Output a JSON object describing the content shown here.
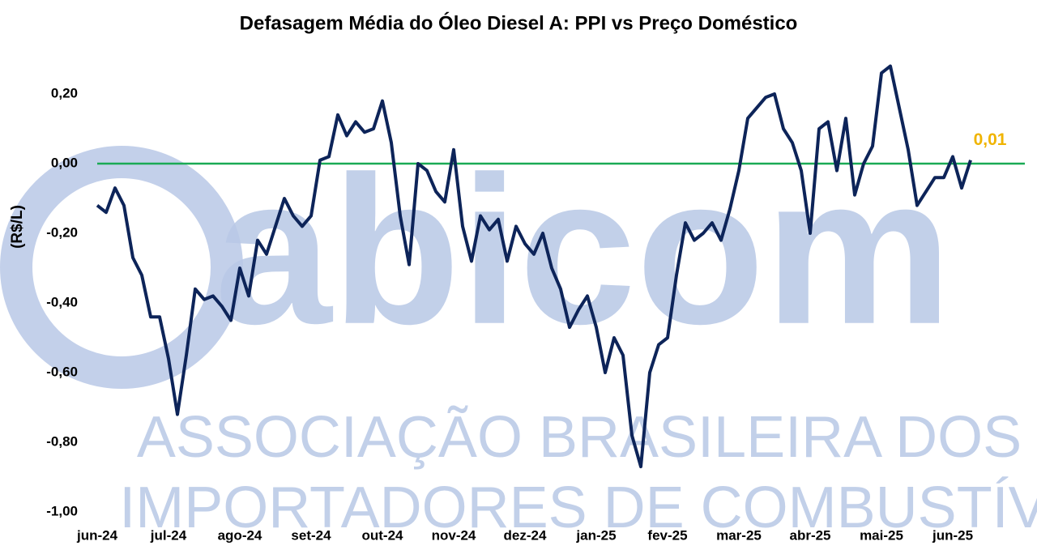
{
  "chart_data": {
    "type": "line",
    "title": "Defasagem Média do Óleo Diesel A: PPI vs Preço Doméstico",
    "y_label": "(R$/L)",
    "watermark": [
      "abicom",
      "ASSOCIAÇÃO BRASILEIRA DOS",
      "IMPORTADORES DE COMBUSTÍVEIS"
    ],
    "categories": [
      "jun-24",
      null,
      null,
      null,
      null,
      null,
      null,
      null,
      "jul-24",
      null,
      null,
      null,
      null,
      null,
      null,
      null,
      "ago-24",
      null,
      null,
      null,
      null,
      null,
      null,
      null,
      "set-24",
      null,
      null,
      null,
      null,
      null,
      null,
      null,
      "out-24",
      null,
      null,
      null,
      null,
      null,
      null,
      null,
      "nov-24",
      null,
      null,
      null,
      null,
      null,
      null,
      null,
      "dez-24",
      null,
      null,
      null,
      null,
      null,
      null,
      null,
      "jan-25",
      null,
      null,
      null,
      null,
      null,
      null,
      null,
      "fev-25",
      null,
      null,
      null,
      null,
      null,
      null,
      null,
      "mar-25",
      null,
      null,
      null,
      null,
      null,
      null,
      null,
      "abr-25",
      null,
      null,
      null,
      null,
      null,
      null,
      null,
      "mai-25",
      null,
      null,
      null,
      null,
      null,
      null,
      null,
      "jun-25",
      null,
      null
    ],
    "series": [
      {
        "name": "Defasagem",
        "color": "#0d2459",
        "values": [
          -0.12,
          -0.14,
          -0.07,
          -0.12,
          -0.27,
          -0.32,
          -0.44,
          -0.44,
          -0.56,
          -0.72,
          -0.55,
          -0.36,
          -0.39,
          -0.38,
          -0.41,
          -0.45,
          -0.3,
          -0.38,
          -0.22,
          -0.26,
          -0.18,
          -0.1,
          -0.15,
          -0.18,
          -0.15,
          0.01,
          0.02,
          0.14,
          0.08,
          0.12,
          0.09,
          0.1,
          0.18,
          0.06,
          -0.15,
          -0.29,
          0.0,
          -0.02,
          -0.08,
          -0.11,
          0.04,
          -0.18,
          -0.28,
          -0.15,
          -0.19,
          -0.16,
          -0.28,
          -0.18,
          -0.23,
          -0.26,
          -0.2,
          -0.3,
          -0.36,
          -0.47,
          -0.42,
          -0.38,
          -0.47,
          -0.6,
          -0.5,
          -0.55,
          -0.78,
          -0.87,
          -0.6,
          -0.52,
          -0.5,
          -0.32,
          -0.17,
          -0.22,
          -0.2,
          -0.17,
          -0.22,
          -0.13,
          -0.02,
          0.13,
          0.16,
          0.19,
          0.2,
          0.1,
          0.06,
          -0.02,
          -0.2,
          0.1,
          0.12,
          -0.02,
          0.13,
          -0.09,
          0.0,
          0.05,
          0.26,
          0.28,
          0.16,
          0.04,
          -0.12,
          -0.08,
          -0.04,
          -0.04,
          0.02,
          -0.07,
          0.01
        ],
        "value_labels": [
          null,
          null,
          null,
          null,
          null,
          null,
          null,
          null,
          null,
          null,
          null,
          null,
          null,
          null,
          null,
          null,
          null,
          null,
          null,
          null,
          null,
          null,
          null,
          null,
          null,
          null,
          null,
          null,
          null,
          null,
          null,
          null,
          null,
          null,
          null,
          null,
          null,
          null,
          null,
          null,
          null,
          null,
          null,
          null,
          null,
          null,
          null,
          null,
          null,
          null,
          null,
          null,
          null,
          null,
          null,
          null,
          null,
          null,
          null,
          null,
          null,
          null,
          null,
          null,
          null,
          null,
          null,
          null,
          null,
          null,
          null,
          null,
          null,
          null,
          null,
          null,
          null,
          null,
          null,
          null,
          null,
          null,
          null,
          null,
          null,
          null,
          null,
          null,
          null,
          null,
          null,
          null,
          null,
          null,
          null,
          null,
          null,
          null,
          "0,01"
        ],
        "label_color": "#f0b400"
      }
    ],
    "ylim": [
      -1.0,
      0.3
    ],
    "yticks": [
      {
        "value": -1.0,
        "label": "-1,00"
      },
      {
        "value": -0.8,
        "label": "-0,80"
      },
      {
        "value": -0.6,
        "label": "-0,60"
      },
      {
        "value": -0.4,
        "label": "-0,40"
      },
      {
        "value": -0.2,
        "label": "-0,20"
      },
      {
        "value": 0,
        "label": "0,00"
      },
      {
        "value": 0.2,
        "label": "0,20"
      }
    ],
    "zero_line_color": "#1aaa55"
  }
}
